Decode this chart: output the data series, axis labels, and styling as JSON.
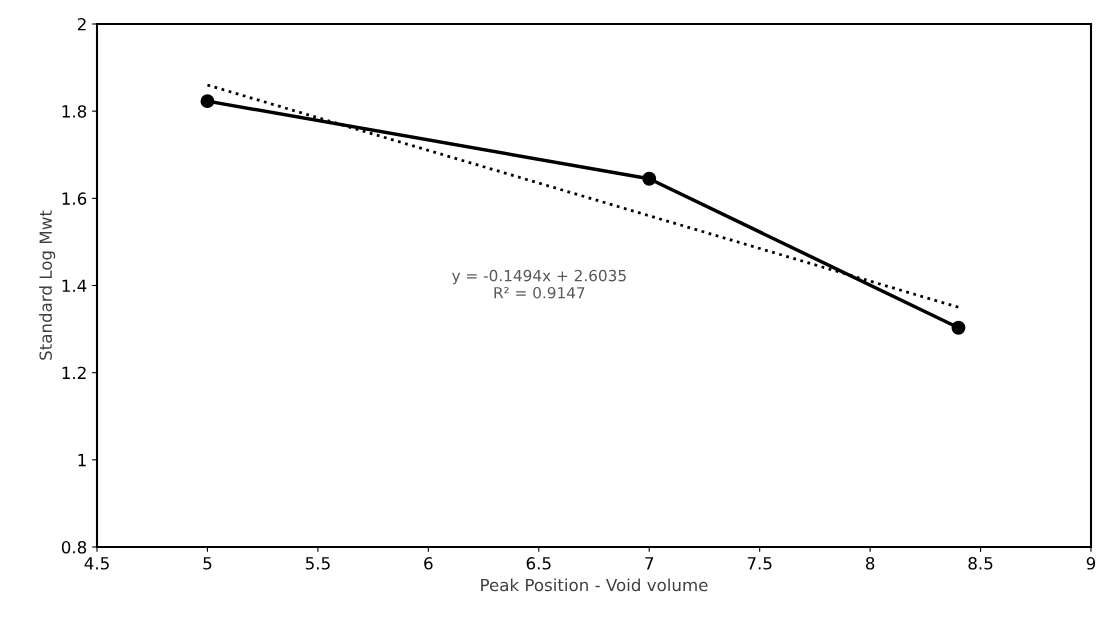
{
  "chart_data": {
    "type": "line",
    "xlabel": "Peak Position - Void volume",
    "ylabel": "Standard Log Mwt",
    "series": [
      {
        "color": "#000000",
        "x": [
          5,
          7,
          8.4
        ],
        "values": [
          1.823,
          1.645,
          1.303
        ],
        "marker": "circle",
        "line_style": "solid"
      },
      {
        "color": "#000000",
        "x": [
          5,
          8.4
        ],
        "values": [
          1.86,
          1.35
        ],
        "marker": "none",
        "line_style": "dotted"
      }
    ],
    "annotations": [
      "y = -0.1494x + 2.6035\nR² = 0.9147"
    ],
    "xlim": [
      4.5,
      9
    ],
    "xticks": [
      4.5,
      5,
      5.5,
      6,
      6.5,
      7,
      7.5,
      8,
      8.5,
      9
    ],
    "ylim": [
      0.8,
      2
    ],
    "yticks": [
      0.8,
      1,
      1.2,
      1.4,
      1.6,
      1.8,
      2
    ],
    "grid": false,
    "legend": false
  }
}
